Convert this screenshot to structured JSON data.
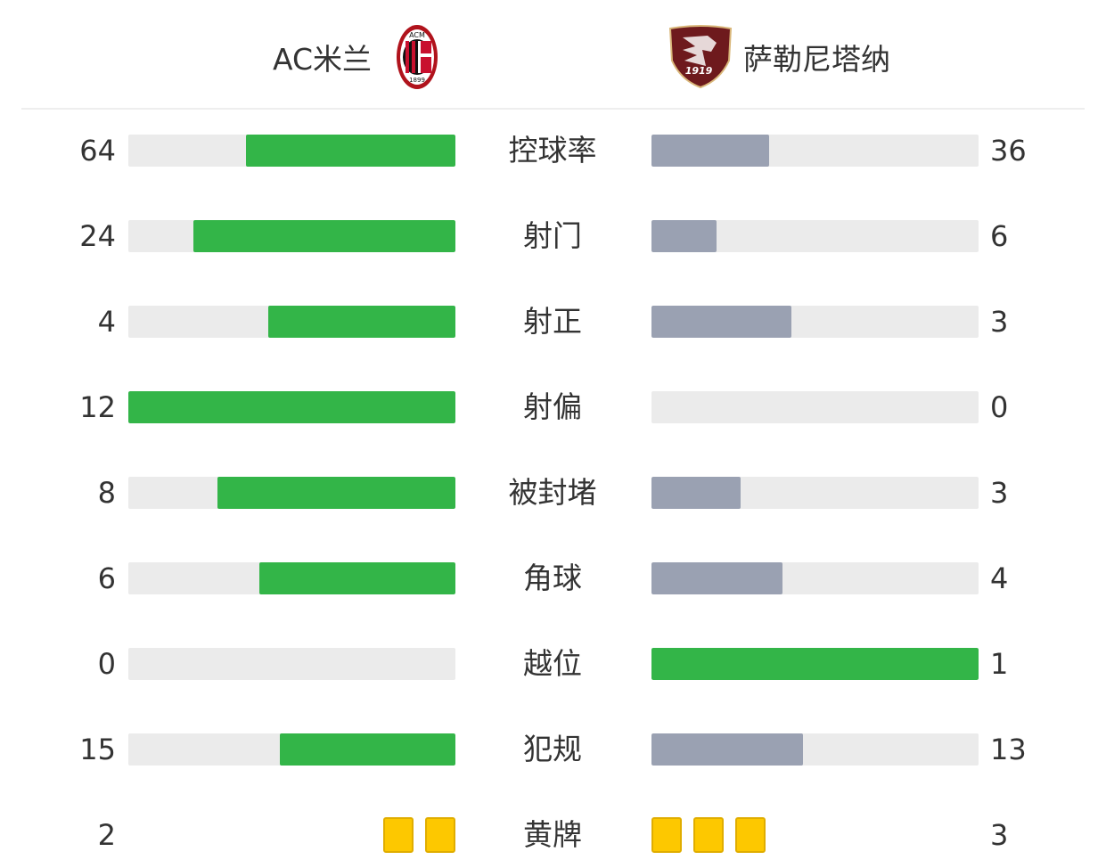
{
  "home": {
    "name": "AC米兰",
    "logo_text_top": "ACM",
    "logo_text_bottom": "1899"
  },
  "away": {
    "name": "萨勒尼塔纳",
    "logo_text": "1919"
  },
  "colors": {
    "leader": "#33b548",
    "trailer": "#9aa1b2",
    "track": "#ebebeb",
    "yellow_card": "#fdc800"
  },
  "stats": [
    {
      "label": "控球率",
      "home": 64,
      "away": 36
    },
    {
      "label": "射门",
      "home": 24,
      "away": 6
    },
    {
      "label": "射正",
      "home": 4,
      "away": 3
    },
    {
      "label": "射偏",
      "home": 12,
      "away": 0
    },
    {
      "label": "被封堵",
      "home": 8,
      "away": 3
    },
    {
      "label": "角球",
      "home": 6,
      "away": 4
    },
    {
      "label": "越位",
      "home": 0,
      "away": 1
    },
    {
      "label": "犯规",
      "home": 15,
      "away": 13
    }
  ],
  "cards": {
    "label": "黄牌",
    "home": 2,
    "away": 3,
    "icon": "yellow-card-icon"
  }
}
